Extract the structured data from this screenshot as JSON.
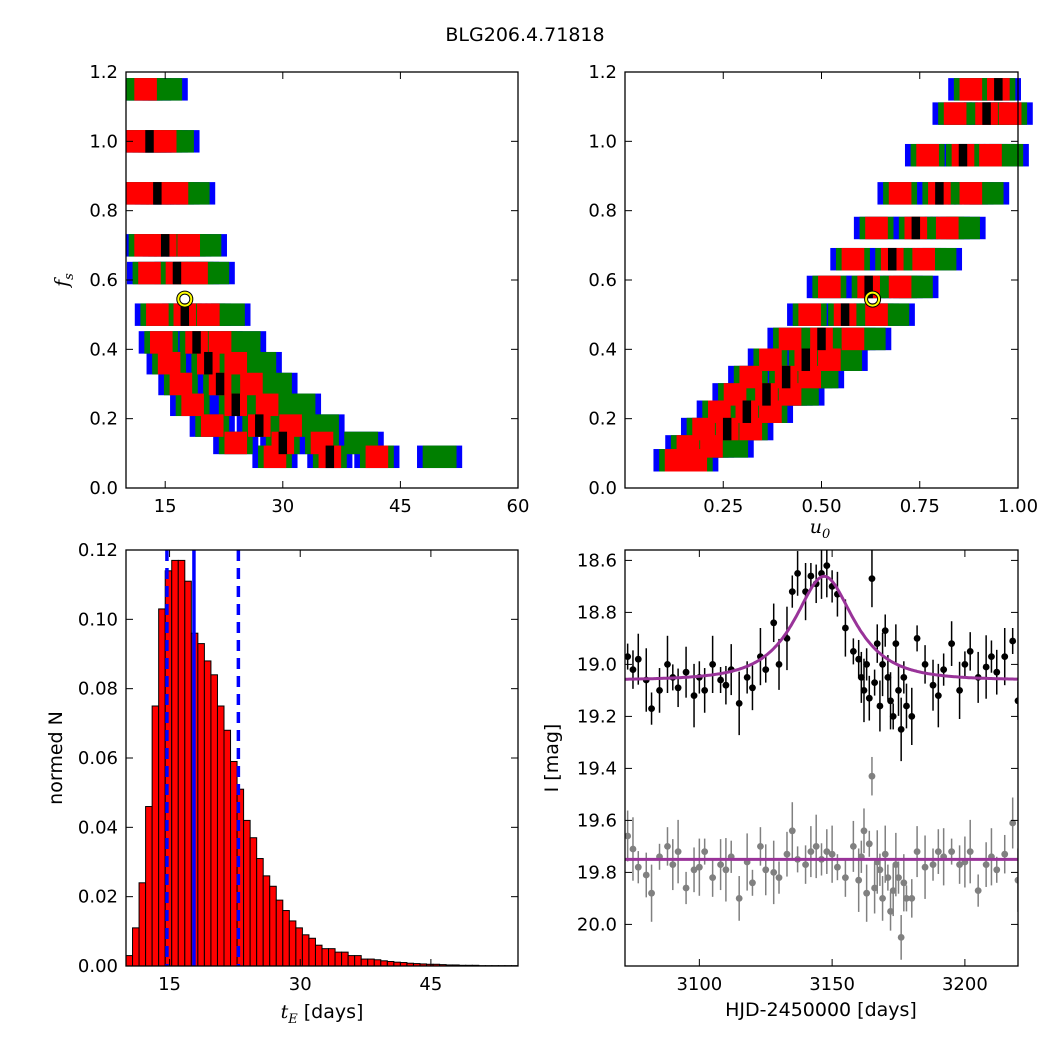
{
  "figure_title": "BLG206.4.71818",
  "chart_data": [
    {
      "type": "heatmap",
      "panel": "top-left",
      "xlabel": "",
      "ylabel_main": "f",
      "ylabel_sub": "s",
      "xlim": [
        10,
        60
      ],
      "ylim": [
        0.0,
        1.2
      ],
      "xticks": [
        15,
        30,
        45,
        60
      ],
      "xtick_labels": [
        "15",
        "30",
        "45",
        "60"
      ],
      "yticks": [
        0.0,
        0.2,
        0.4,
        0.6,
        0.8,
        1.0,
        1.2
      ],
      "ytick_labels": [
        "0.0",
        "0.2",
        "0.4",
        "0.6",
        "0.8",
        "1.0",
        "1.2"
      ],
      "levels": [
        "blue",
        "green",
        "red",
        "black"
      ],
      "level_colors": [
        "#0000ff",
        "#007f00",
        "#ff0000",
        "#000000"
      ],
      "marker_colors": [
        "#ffff00",
        "#000000"
      ],
      "best_fit": {
        "x": 17.5,
        "y": 0.545
      },
      "cells": [
        [
          10.5,
          1.15,
          1
        ],
        [
          12.5,
          1.15,
          2
        ],
        [
          15,
          1.15,
          1
        ],
        [
          11,
          1.0,
          2
        ],
        [
          13,
          1.0,
          3
        ],
        [
          15,
          1.0,
          2
        ],
        [
          16.5,
          1.0,
          1
        ],
        [
          11.5,
          0.85,
          2
        ],
        [
          14,
          0.85,
          3
        ],
        [
          16.5,
          0.85,
          2
        ],
        [
          18.5,
          0.85,
          1
        ],
        [
          12.5,
          0.7,
          2
        ],
        [
          15,
          0.7,
          3
        ],
        [
          18,
          0.7,
          2
        ],
        [
          20,
          0.7,
          1
        ],
        [
          13,
          0.62,
          2
        ],
        [
          16.5,
          0.62,
          3
        ],
        [
          19,
          0.62,
          2
        ],
        [
          21,
          0.62,
          1
        ],
        [
          14,
          0.5,
          2
        ],
        [
          17.5,
          0.5,
          3
        ],
        [
          20.5,
          0.5,
          2
        ],
        [
          23,
          0.5,
          1
        ],
        [
          14.5,
          0.42,
          2
        ],
        [
          19,
          0.42,
          3
        ],
        [
          22,
          0.42,
          2
        ],
        [
          25,
          0.42,
          1
        ],
        [
          15.5,
          0.36,
          2
        ],
        [
          20.5,
          0.36,
          3
        ],
        [
          24,
          0.36,
          2
        ],
        [
          27,
          0.36,
          1
        ],
        [
          17,
          0.3,
          2
        ],
        [
          22,
          0.3,
          3
        ],
        [
          26,
          0.3,
          2
        ],
        [
          29,
          0.3,
          1
        ],
        [
          18.5,
          0.24,
          2
        ],
        [
          24,
          0.24,
          3
        ],
        [
          28,
          0.24,
          2
        ],
        [
          32,
          0.24,
          1
        ],
        [
          21,
          0.18,
          2
        ],
        [
          27,
          0.18,
          3
        ],
        [
          31,
          0.18,
          2
        ],
        [
          35,
          0.18,
          1
        ],
        [
          24,
          0.13,
          2
        ],
        [
          30,
          0.13,
          3
        ],
        [
          35,
          0.13,
          2
        ],
        [
          40,
          0.13,
          1
        ],
        [
          29,
          0.09,
          2
        ],
        [
          36,
          0.09,
          3
        ],
        [
          42,
          0.09,
          2
        ],
        [
          50,
          0.09,
          1
        ]
      ]
    },
    {
      "type": "heatmap",
      "panel": "top-right",
      "xlabel_main": "u",
      "xlabel_sub": "0",
      "ylabel": "",
      "xlim": [
        0.0,
        1.0
      ],
      "ylim": [
        0.0,
        1.2
      ],
      "xticks": [
        0.25,
        0.5,
        0.75,
        1.0
      ],
      "xtick_labels": [
        "0.25",
        "0.50",
        "0.75",
        "1.00"
      ],
      "yticks": [
        0.0,
        0.2,
        0.4,
        0.6,
        0.8,
        1.0,
        1.2
      ],
      "ytick_labels": [
        "0.0",
        "0.2",
        "0.4",
        "0.6",
        "0.8",
        "1.0",
        "1.2"
      ],
      "levels": [
        "blue",
        "green",
        "red",
        "black"
      ],
      "level_colors": [
        "#0000ff",
        "#007f00",
        "#ff0000",
        "#000000"
      ],
      "marker_colors": [
        "#ffff00",
        "#000000"
      ],
      "best_fit": {
        "x": 0.63,
        "y": 0.545
      },
      "cells": [
        [
          0.13,
          0.08,
          2
        ],
        [
          0.18,
          0.08,
          2
        ],
        [
          0.16,
          0.12,
          2
        ],
        [
          0.22,
          0.12,
          2
        ],
        [
          0.27,
          0.12,
          1
        ],
        [
          0.2,
          0.17,
          2
        ],
        [
          0.26,
          0.17,
          3
        ],
        [
          0.32,
          0.17,
          2
        ],
        [
          0.24,
          0.22,
          2
        ],
        [
          0.31,
          0.22,
          3
        ],
        [
          0.37,
          0.22,
          2
        ],
        [
          0.28,
          0.27,
          2
        ],
        [
          0.36,
          0.27,
          3
        ],
        [
          0.42,
          0.27,
          2
        ],
        [
          0.45,
          0.27,
          1
        ],
        [
          0.32,
          0.32,
          2
        ],
        [
          0.41,
          0.32,
          3
        ],
        [
          0.47,
          0.32,
          2
        ],
        [
          0.5,
          0.32,
          1
        ],
        [
          0.37,
          0.37,
          2
        ],
        [
          0.46,
          0.37,
          3
        ],
        [
          0.52,
          0.37,
          2
        ],
        [
          0.56,
          0.37,
          1
        ],
        [
          0.42,
          0.43,
          2
        ],
        [
          0.5,
          0.43,
          3
        ],
        [
          0.58,
          0.43,
          2
        ],
        [
          0.62,
          0.43,
          1
        ],
        [
          0.47,
          0.5,
          2
        ],
        [
          0.56,
          0.5,
          3
        ],
        [
          0.64,
          0.5,
          2
        ],
        [
          0.68,
          0.5,
          1
        ],
        [
          0.52,
          0.58,
          2
        ],
        [
          0.62,
          0.58,
          3
        ],
        [
          0.7,
          0.58,
          2
        ],
        [
          0.74,
          0.58,
          1
        ],
        [
          0.58,
          0.66,
          2
        ],
        [
          0.68,
          0.66,
          3
        ],
        [
          0.76,
          0.66,
          2
        ],
        [
          0.8,
          0.66,
          1
        ],
        [
          0.64,
          0.75,
          2
        ],
        [
          0.74,
          0.75,
          3
        ],
        [
          0.82,
          0.75,
          2
        ],
        [
          0.86,
          0.75,
          1
        ],
        [
          0.7,
          0.85,
          2
        ],
        [
          0.8,
          0.85,
          3
        ],
        [
          0.88,
          0.85,
          2
        ],
        [
          0.92,
          0.85,
          1
        ],
        [
          0.77,
          0.96,
          2
        ],
        [
          0.86,
          0.96,
          3
        ],
        [
          0.93,
          0.96,
          2
        ],
        [
          0.97,
          0.96,
          1
        ],
        [
          0.84,
          1.08,
          2
        ],
        [
          0.92,
          1.08,
          3
        ],
        [
          0.98,
          1.08,
          2
        ],
        [
          0.88,
          1.15,
          2
        ],
        [
          0.95,
          1.15,
          3
        ]
      ]
    },
    {
      "type": "bar",
      "panel": "bottom-left",
      "xlabel_main": "t",
      "xlabel_sub": "E",
      "xlabel_suffix": "[days]",
      "ylabel": "normed N",
      "xlim": [
        10,
        55
      ],
      "ylim": [
        0.0,
        0.12
      ],
      "xticks": [
        15,
        30,
        45
      ],
      "xtick_labels": [
        "15",
        "30",
        "45"
      ],
      "yticks": [
        0.0,
        0.02,
        0.04,
        0.06,
        0.08,
        0.1,
        0.12
      ],
      "ytick_labels": [
        "0.00",
        "0.02",
        "0.04",
        "0.06",
        "0.08",
        "0.10",
        "0.12"
      ],
      "bin_start": 10.0,
      "bin_width": 0.75,
      "values": [
        0.003,
        0.011,
        0.024,
        0.046,
        0.075,
        0.103,
        0.114,
        0.117,
        0.117,
        0.111,
        0.096,
        0.093,
        0.088,
        0.084,
        0.075,
        0.068,
        0.059,
        0.051,
        0.042,
        0.037,
        0.031,
        0.026,
        0.023,
        0.019,
        0.016,
        0.013,
        0.011,
        0.009,
        0.008,
        0.006,
        0.005,
        0.005,
        0.004,
        0.004,
        0.003,
        0.003,
        0.002,
        0.002,
        0.0018,
        0.0015,
        0.0013,
        0.0011,
        0.001,
        0.0008,
        0.0007,
        0.0006,
        0.0005,
        0.0005,
        0.0004,
        0.0003,
        0.0003,
        0.0002,
        0.0002,
        0.0002,
        0.0001,
        0.0001,
        0.0001,
        0.0001,
        0.0001,
        0.0001
      ],
      "bar_color": "#ff0000",
      "edge_color": "#000000",
      "median": 17.8,
      "interval": [
        14.7,
        22.9
      ],
      "line_color": "#0000ff"
    },
    {
      "type": "scatter",
      "panel": "bottom-right",
      "xlabel": "HJD-2450000 [days]",
      "ylabel": "I [mag]",
      "xlim": [
        3072,
        3220
      ],
      "ylim": [
        20.16,
        18.56
      ],
      "y_inverted": true,
      "xticks": [
        3100,
        3150,
        3200
      ],
      "xtick_labels": [
        "3100",
        "3150",
        "3200"
      ],
      "yticks": [
        18.6,
        18.8,
        19.0,
        19.2,
        19.4,
        19.6,
        19.8,
        20.0
      ],
      "ytick_labels": [
        "18.6",
        "18.8",
        "19.0",
        "19.2",
        "19.4",
        "19.6",
        "19.8",
        "20.0"
      ],
      "model_color": "#993399",
      "series": [
        {
          "color": "#000000",
          "x": [
            3073,
            3075,
            3077,
            3080,
            3082,
            3085,
            3088,
            3090,
            3092,
            3095,
            3098,
            3100,
            3102,
            3105,
            3108,
            3110,
            3112,
            3115,
            3118,
            3120,
            3123,
            3125,
            3128,
            3130,
            3133,
            3135,
            3137,
            3140,
            3142,
            3144,
            3146,
            3148,
            3150,
            3152,
            3155,
            3158,
            3160,
            3161,
            3162,
            3163,
            3164,
            3165,
            3166,
            3167,
            3168,
            3169,
            3170,
            3171,
            3172,
            3173,
            3174,
            3175,
            3176,
            3177,
            3178,
            3180,
            3182,
            3185,
            3188,
            3190,
            3192,
            3195,
            3198,
            3200,
            3202,
            3205,
            3208,
            3210,
            3212,
            3215,
            3218,
            3220
          ],
          "y": [
            18.97,
            19.02,
            18.98,
            19.06,
            19.17,
            19.1,
            19.0,
            19.05,
            19.09,
            19.03,
            19.12,
            19.05,
            19.1,
            19.0,
            19.06,
            19.08,
            19.02,
            19.15,
            19.05,
            19.09,
            18.97,
            19.02,
            18.84,
            19.0,
            18.9,
            18.72,
            18.65,
            18.72,
            18.66,
            18.69,
            18.65,
            18.62,
            18.7,
            18.73,
            18.86,
            18.95,
            18.98,
            19.05,
            19.1,
            19.0,
            19.13,
            18.67,
            19.07,
            18.92,
            19.16,
            19.0,
            18.87,
            19.05,
            19.14,
            19.2,
            18.92,
            19.1,
            19.25,
            19.05,
            19.16,
            19.2,
            18.9,
            19.0,
            19.08,
            19.12,
            19.02,
            18.92,
            19.1,
            19.0,
            18.95,
            19.05,
            19.01,
            18.97,
            19.03,
            18.97,
            18.91,
            19.14
          ]
        },
        {
          "color": "#808080",
          "x": [
            3073,
            3075,
            3077,
            3080,
            3082,
            3085,
            3088,
            3090,
            3092,
            3095,
            3098,
            3100,
            3102,
            3105,
            3108,
            3110,
            3112,
            3115,
            3118,
            3120,
            3123,
            3125,
            3128,
            3130,
            3133,
            3135,
            3137,
            3140,
            3142,
            3144,
            3146,
            3148,
            3150,
            3152,
            3155,
            3158,
            3160,
            3161,
            3162,
            3163,
            3164,
            3165,
            3166,
            3167,
            3168,
            3169,
            3170,
            3171,
            3172,
            3173,
            3174,
            3175,
            3176,
            3177,
            3178,
            3180,
            3182,
            3185,
            3188,
            3190,
            3192,
            3195,
            3198,
            3200,
            3202,
            3205,
            3208,
            3210,
            3212,
            3215,
            3218,
            3220
          ],
          "y": [
            19.66,
            19.71,
            19.78,
            19.81,
            19.88,
            19.74,
            19.7,
            19.77,
            19.72,
            19.86,
            19.79,
            19.78,
            19.72,
            19.82,
            19.77,
            19.79,
            19.74,
            19.9,
            19.76,
            19.84,
            19.7,
            19.79,
            19.8,
            19.82,
            19.73,
            19.64,
            19.75,
            19.77,
            19.72,
            19.7,
            19.75,
            19.72,
            19.73,
            19.78,
            19.82,
            19.7,
            19.83,
            19.74,
            19.64,
            19.88,
            19.69,
            19.43,
            19.86,
            19.76,
            19.79,
            19.9,
            19.73,
            19.82,
            19.95,
            19.87,
            19.77,
            19.82,
            20.05,
            19.84,
            19.9,
            19.9,
            19.72,
            19.78,
            19.77,
            19.72,
            19.74,
            19.72,
            19.77,
            19.76,
            19.72,
            19.87,
            19.77,
            19.74,
            19.79,
            19.73,
            19.61,
            19.83
          ]
        }
      ],
      "models": [
        {
          "t0": 3147,
          "tE": 18,
          "u0": 0.63,
          "fs": 0.545,
          "baseline": 19.06
        },
        {
          "flat": 19.75
        }
      ]
    }
  ]
}
